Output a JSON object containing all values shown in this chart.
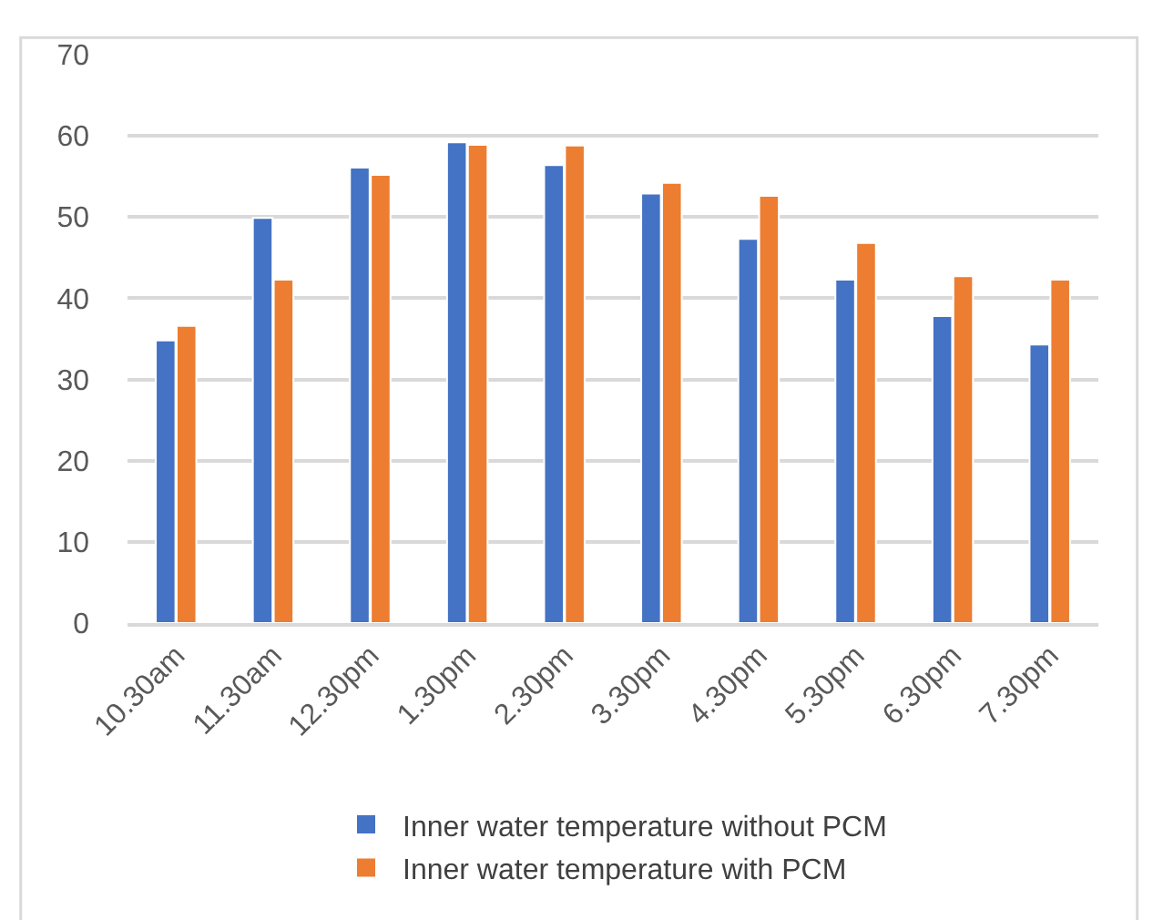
{
  "chart_data": {
    "type": "bar",
    "categories": [
      "10.30am",
      "11.30am",
      "12.30pm",
      "1.30pm",
      "2.30pm",
      "3.30pm",
      "4.30pm",
      "5.30pm",
      "6.30pm",
      "7.30pm"
    ],
    "series": [
      {
        "name": "Inner water temperature without PCM",
        "color": "#4472c4",
        "values": [
          34.8,
          49.9,
          56.1,
          59.2,
          56.4,
          52.9,
          47.3,
          42.3,
          37.8,
          34.3
        ]
      },
      {
        "name": "Inner water temperature with PCM",
        "color": "#ed7d31",
        "values": [
          36.6,
          42.3,
          55.2,
          58.9,
          58.8,
          54.2,
          52.6,
          46.8,
          42.7,
          42.3
        ]
      }
    ],
    "ylim": [
      0,
      70
    ],
    "yticks": [
      0,
      10,
      20,
      30,
      40,
      50,
      60,
      70
    ],
    "grid": "y",
    "legend": "bottom"
  }
}
